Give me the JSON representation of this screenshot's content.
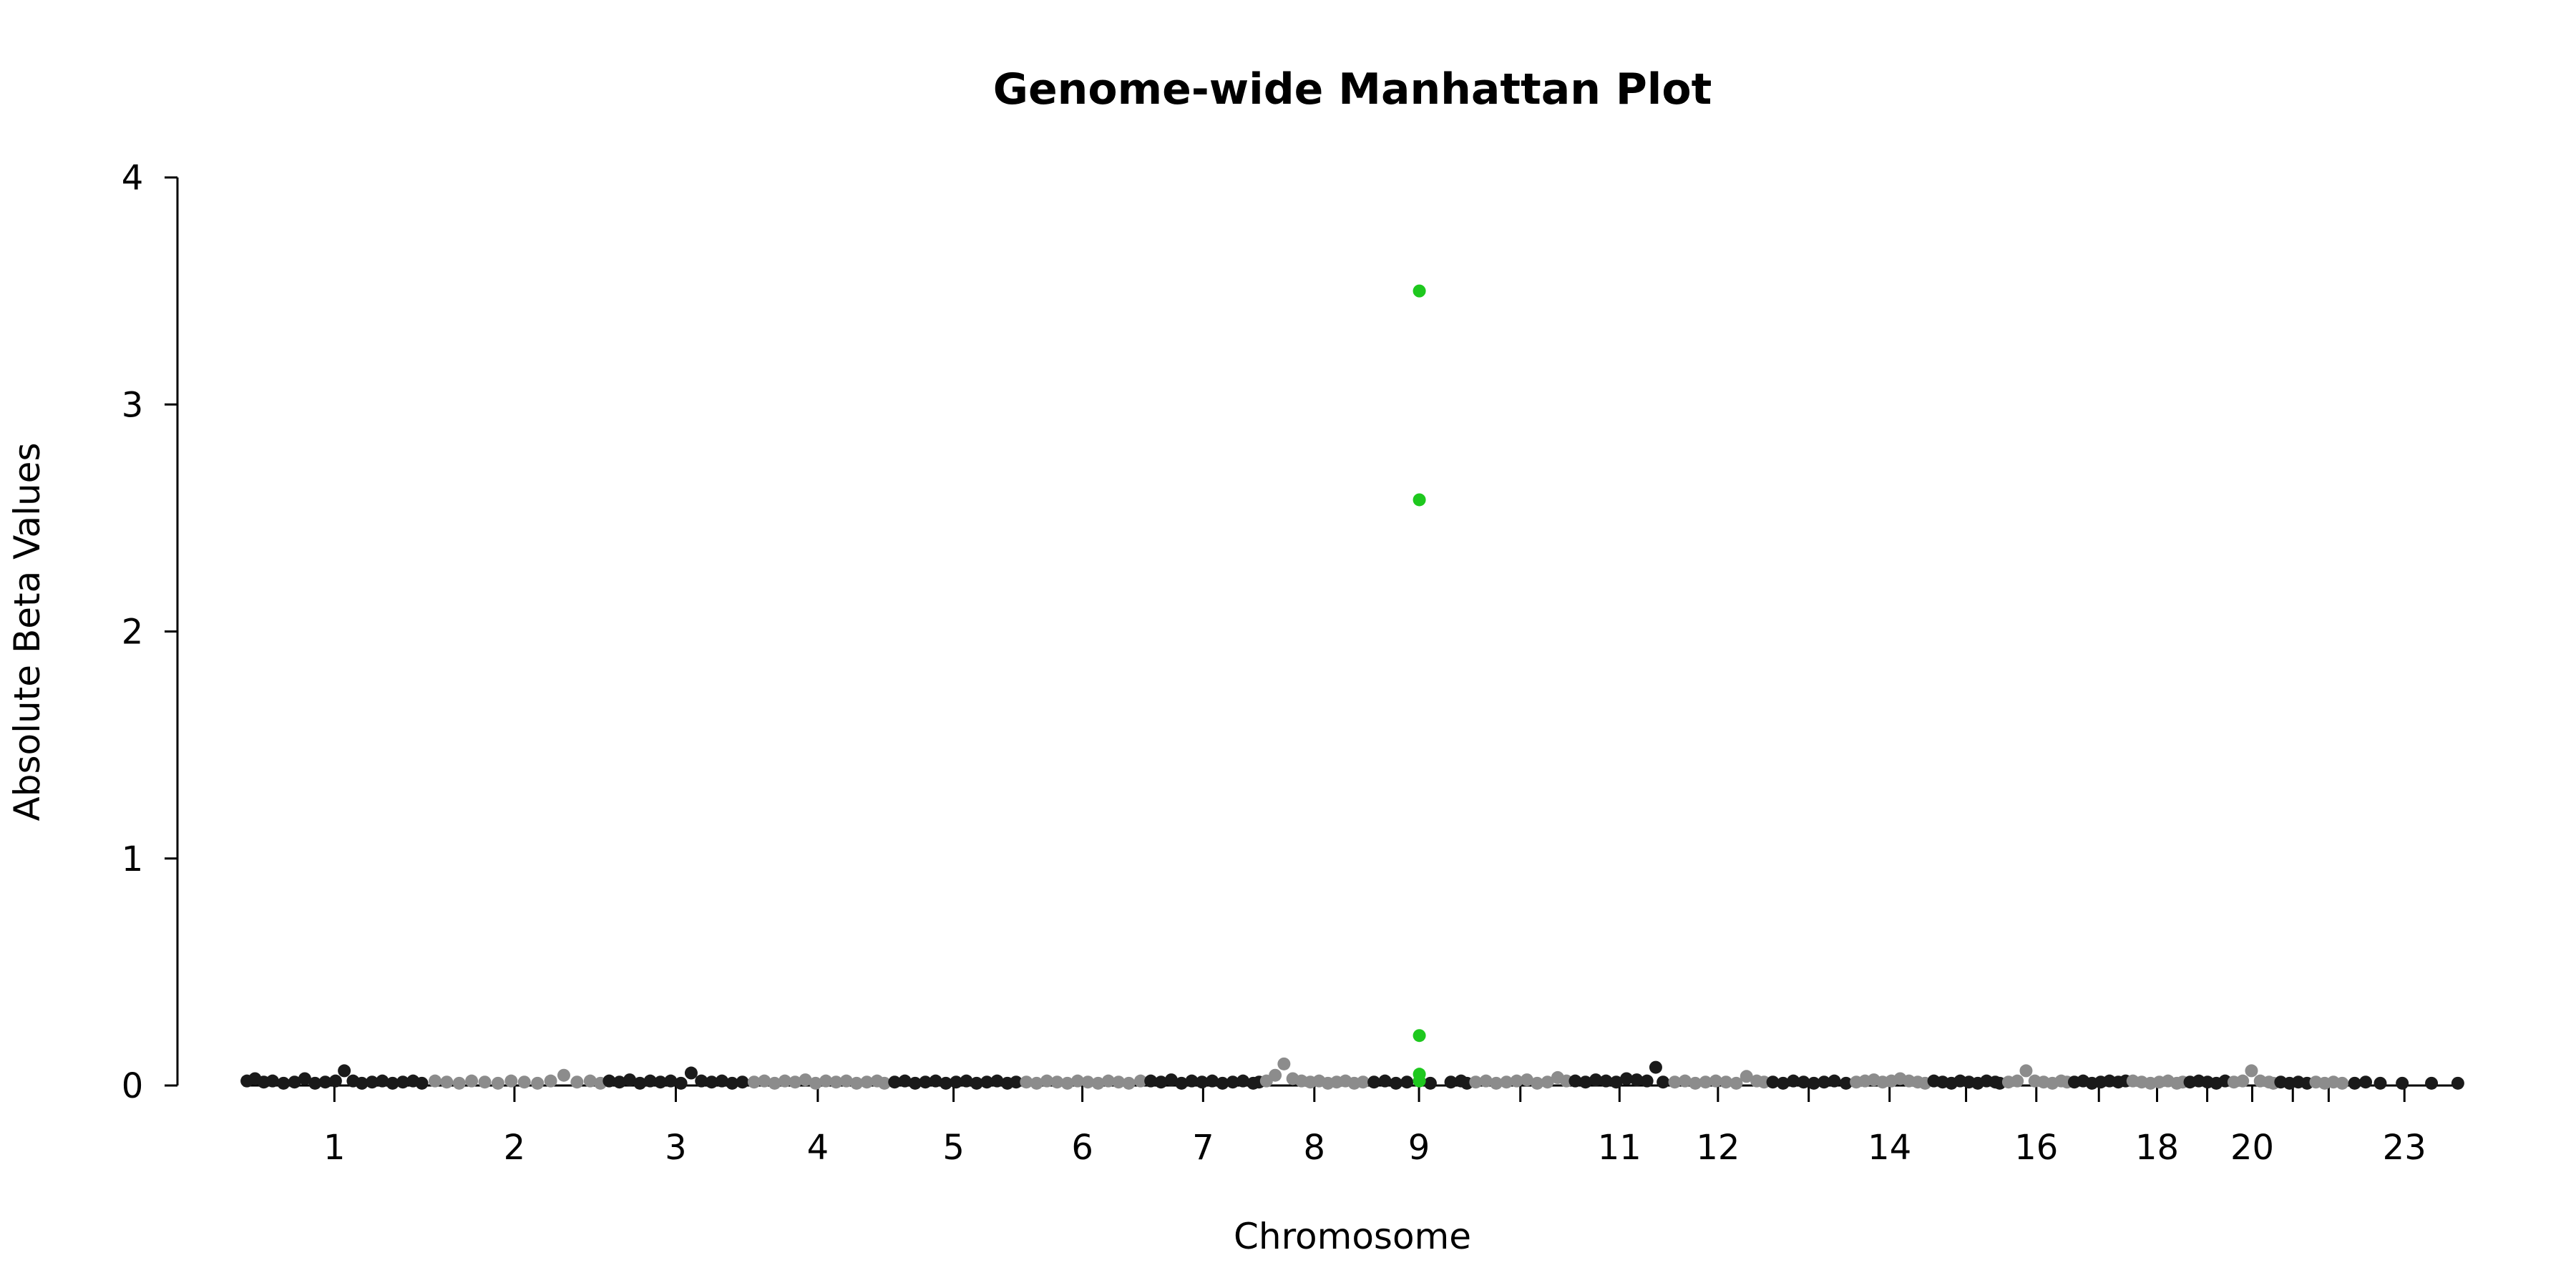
{
  "chart_data": {
    "type": "scatter",
    "title": "Genome-wide Manhattan Plot",
    "xlabel": "Chromosome",
    "ylabel": "Absolute Beta Values",
    "ylim": [
      0,
      4
    ],
    "yticks": [
      0,
      1,
      2,
      3,
      4
    ],
    "grid": false,
    "legend": "none",
    "colors": {
      "dark": "#1a1a1a",
      "light": "#8c8c8c",
      "highlight": "#1ec81e"
    },
    "chromosomes": [
      {
        "id": "1",
        "label": "1",
        "start": 0,
        "end": 249
      },
      {
        "id": "2",
        "label": "2",
        "start": 249,
        "end": 492
      },
      {
        "id": "3",
        "label": "3",
        "start": 492,
        "end": 690
      },
      {
        "id": "4",
        "label": "4",
        "start": 690,
        "end": 880
      },
      {
        "id": "5",
        "label": "5",
        "start": 880,
        "end": 1061
      },
      {
        "id": "6",
        "label": "6",
        "start": 1061,
        "end": 1232
      },
      {
        "id": "7",
        "label": "7",
        "start": 1232,
        "end": 1391
      },
      {
        "id": "8",
        "label": "8",
        "start": 1391,
        "end": 1536
      },
      {
        "id": "9",
        "label": "9",
        "start": 1536,
        "end": 1677
      },
      {
        "id": "10",
        "label": "",
        "start": 1677,
        "end": 1813
      },
      {
        "id": "11",
        "label": "11",
        "start": 1813,
        "end": 1948
      },
      {
        "id": "12",
        "label": "12",
        "start": 1948,
        "end": 2082
      },
      {
        "id": "13",
        "label": "",
        "start": 2082,
        "end": 2196
      },
      {
        "id": "14",
        "label": "14",
        "start": 2196,
        "end": 2303
      },
      {
        "id": "15",
        "label": "",
        "start": 2303,
        "end": 2405
      },
      {
        "id": "16",
        "label": "16",
        "start": 2405,
        "end": 2495
      },
      {
        "id": "17",
        "label": "",
        "start": 2495,
        "end": 2576
      },
      {
        "id": "18",
        "label": "18",
        "start": 2576,
        "end": 2654
      },
      {
        "id": "19",
        "label": "",
        "start": 2654,
        "end": 2713
      },
      {
        "id": "20",
        "label": "20",
        "start": 2713,
        "end": 2777
      },
      {
        "id": "21",
        "label": "",
        "start": 2777,
        "end": 2824
      },
      {
        "id": "22",
        "label": "",
        "start": 2824,
        "end": 2875
      },
      {
        "id": "23",
        "label": "23",
        "start": 2875,
        "end": 3031
      }
    ],
    "series": [
      {
        "chromosome": "1",
        "color": "dark",
        "x": [
          5,
          16,
          28,
          40,
          55,
          70,
          84,
          98,
          112,
          126,
          138,
          150,
          162,
          176,
          190,
          204,
          218,
          232,
          244
        ],
        "y": [
          0.02,
          0.03,
          0.015,
          0.02,
          0.01,
          0.015,
          0.03,
          0.01,
          0.015,
          0.02,
          0.065,
          0.02,
          0.01,
          0.015,
          0.02,
          0.01,
          0.015,
          0.02,
          0.01
        ]
      },
      {
        "chromosome": "2",
        "color": "light",
        "x": [
          262,
          278,
          295,
          312,
          330,
          348,
          366,
          384,
          402,
          420,
          438,
          456,
          474,
          488
        ],
        "y": [
          0.02,
          0.015,
          0.01,
          0.02,
          0.015,
          0.01,
          0.02,
          0.015,
          0.01,
          0.02,
          0.045,
          0.015,
          0.02,
          0.01
        ]
      },
      {
        "chromosome": "3",
        "color": "dark",
        "x": [
          500,
          514,
          528,
          542,
          556,
          570,
          584,
          598,
          612,
          626,
          640,
          654,
          668,
          682
        ],
        "y": [
          0.02,
          0.015,
          0.025,
          0.01,
          0.02,
          0.015,
          0.02,
          0.01,
          0.055,
          0.02,
          0.015,
          0.02,
          0.01,
          0.015
        ]
      },
      {
        "chromosome": "4",
        "color": "light",
        "x": [
          698,
          712,
          726,
          740,
          754,
          768,
          782,
          796,
          810,
          824,
          838,
          852,
          866,
          876
        ],
        "y": [
          0.015,
          0.02,
          0.01,
          0.02,
          0.015,
          0.025,
          0.01,
          0.02,
          0.015,
          0.02,
          0.01,
          0.015,
          0.02,
          0.01
        ]
      },
      {
        "chromosome": "5",
        "color": "dark",
        "x": [
          890,
          904,
          918,
          932,
          946,
          960,
          974,
          988,
          1002,
          1016,
          1030,
          1044,
          1056
        ],
        "y": [
          0.015,
          0.02,
          0.01,
          0.015,
          0.02,
          0.01,
          0.015,
          0.02,
          0.01,
          0.015,
          0.02,
          0.01,
          0.015
        ]
      },
      {
        "chromosome": "6",
        "color": "light",
        "x": [
          1070,
          1084,
          1098,
          1112,
          1126,
          1140,
          1154,
          1168,
          1182,
          1196,
          1210,
          1226
        ],
        "y": [
          0.015,
          0.01,
          0.02,
          0.015,
          0.01,
          0.02,
          0.015,
          0.01,
          0.02,
          0.015,
          0.01,
          0.02
        ]
      },
      {
        "chromosome": "7",
        "color": "dark",
        "x": [
          1240,
          1254,
          1268,
          1282,
          1296,
          1310,
          1324,
          1338,
          1352,
          1366,
          1380,
          1388
        ],
        "y": [
          0.02,
          0.015,
          0.025,
          0.01,
          0.02,
          0.015,
          0.02,
          0.01,
          0.015,
          0.02,
          0.01,
          0.015
        ]
      },
      {
        "chromosome": "8",
        "color": "light",
        "x": [
          1398,
          1410,
          1422,
          1434,
          1446,
          1458,
          1470,
          1482,
          1494,
          1506,
          1518,
          1530
        ],
        "y": [
          0.02,
          0.045,
          0.095,
          0.03,
          0.02,
          0.015,
          0.02,
          0.01,
          0.015,
          0.02,
          0.01,
          0.015
        ]
      },
      {
        "chromosome": "9",
        "color": "dark",
        "x": [
          1545,
          1560,
          1575,
          1590,
          1622,
          1650,
          1664,
          1672
        ],
        "y": [
          0.015,
          0.02,
          0.01,
          0.015,
          0.01,
          0.015,
          0.02,
          0.01
        ]
      },
      {
        "chromosome": "9",
        "color": "highlight",
        "x": [
          1607,
          1607,
          1607,
          1607,
          1607
        ],
        "y": [
          3.5,
          2.58,
          0.22,
          0.05,
          0.02
        ]
      },
      {
        "chromosome": "10",
        "color": "light",
        "x": [
          1684,
          1698,
          1712,
          1726,
          1740,
          1754,
          1768,
          1782,
          1796,
          1808
        ],
        "y": [
          0.015,
          0.02,
          0.01,
          0.015,
          0.02,
          0.025,
          0.01,
          0.015,
          0.035,
          0.02
        ]
      },
      {
        "chromosome": "11",
        "color": "dark",
        "x": [
          1820,
          1834,
          1848,
          1862,
          1876,
          1890,
          1904,
          1918,
          1930,
          1940
        ],
        "y": [
          0.02,
          0.015,
          0.025,
          0.02,
          0.015,
          0.03,
          0.025,
          0.02,
          0.08,
          0.015
        ]
      },
      {
        "chromosome": "12",
        "color": "light",
        "x": [
          1956,
          1970,
          1984,
          1998,
          2012,
          2026,
          2040,
          2054,
          2068,
          2078
        ],
        "y": [
          0.015,
          0.02,
          0.01,
          0.015,
          0.02,
          0.015,
          0.01,
          0.04,
          0.02,
          0.015
        ]
      },
      {
        "chromosome": "13",
        "color": "dark",
        "x": [
          2090,
          2104,
          2118,
          2132,
          2146,
          2160,
          2174,
          2190
        ],
        "y": [
          0.015,
          0.01,
          0.02,
          0.015,
          0.01,
          0.015,
          0.02,
          0.01
        ]
      },
      {
        "chromosome": "14",
        "color": "light",
        "x": [
          2204,
          2216,
          2228,
          2240,
          2252,
          2264,
          2276,
          2288,
          2298
        ],
        "y": [
          0.015,
          0.02,
          0.025,
          0.015,
          0.02,
          0.03,
          0.02,
          0.015,
          0.01
        ]
      },
      {
        "chromosome": "15",
        "color": "dark",
        "x": [
          2310,
          2322,
          2334,
          2346,
          2358,
          2370,
          2382,
          2394,
          2400
        ],
        "y": [
          0.02,
          0.015,
          0.01,
          0.02,
          0.015,
          0.01,
          0.02,
          0.015,
          0.01
        ]
      },
      {
        "chromosome": "16",
        "color": "light",
        "x": [
          2412,
          2424,
          2436,
          2448,
          2460,
          2472,
          2484,
          2492
        ],
        "y": [
          0.015,
          0.02,
          0.065,
          0.02,
          0.015,
          0.01,
          0.02,
          0.015
        ]
      },
      {
        "chromosome": "17",
        "color": "dark",
        "x": [
          2502,
          2514,
          2526,
          2538,
          2550,
          2562,
          2572
        ],
        "y": [
          0.015,
          0.02,
          0.01,
          0.015,
          0.02,
          0.015,
          0.02
        ]
      },
      {
        "chromosome": "18",
        "color": "light",
        "x": [
          2582,
          2594,
          2606,
          2618,
          2630,
          2642,
          2650
        ],
        "y": [
          0.02,
          0.015,
          0.01,
          0.015,
          0.02,
          0.01,
          0.015
        ]
      },
      {
        "chromosome": "19",
        "color": "dark",
        "x": [
          2660,
          2672,
          2684,
          2696,
          2708
        ],
        "y": [
          0.015,
          0.02,
          0.015,
          0.01,
          0.02
        ]
      },
      {
        "chromosome": "20",
        "color": "light",
        "x": [
          2720,
          2732,
          2744,
          2756,
          2768,
          2774
        ],
        "y": [
          0.015,
          0.02,
          0.065,
          0.02,
          0.015,
          0.01
        ]
      },
      {
        "chromosome": "21",
        "color": "dark",
        "x": [
          2784,
          2796,
          2808,
          2820
        ],
        "y": [
          0.015,
          0.01,
          0.015,
          0.01
        ]
      },
      {
        "chromosome": "22",
        "color": "light",
        "x": [
          2832,
          2844,
          2856,
          2868
        ],
        "y": [
          0.015,
          0.01,
          0.015,
          0.01
        ]
      },
      {
        "chromosome": "23",
        "color": "dark",
        "x": [
          2885,
          2900,
          2920,
          2950,
          2990,
          3026
        ],
        "y": [
          0.01,
          0.015,
          0.01,
          0.01,
          0.01,
          0.01
        ]
      }
    ]
  }
}
